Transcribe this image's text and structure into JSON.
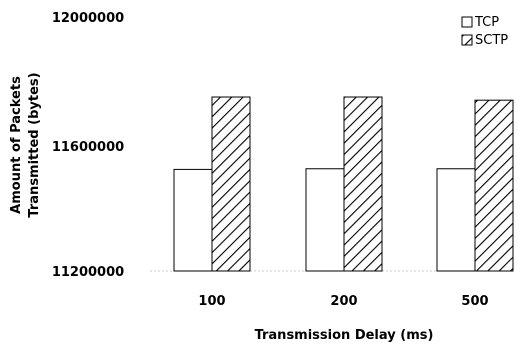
{
  "chart_data": {
    "type": "bar",
    "title": "",
    "xlabel": "Transmission Delay (ms)",
    "ylabel_lines": [
      "Amount of Packets",
      "Transmitted (bytes)"
    ],
    "categories": [
      "100",
      "200",
      "500"
    ],
    "ylim": [
      11200000,
      12000000
    ],
    "yticks": [
      "11200000",
      "11600000",
      "12000000"
    ],
    "ytick_values": [
      11200000,
      11600000,
      12000000
    ],
    "grid": false,
    "legend_position": "top-right",
    "series": [
      {
        "name": "TCP",
        "pattern": "hollow",
        "color": "#000000",
        "values": [
          11520000,
          11522000,
          11522000
        ]
      },
      {
        "name": "SCTP",
        "pattern": "hatched",
        "color": "#000000",
        "values": [
          11748000,
          11748000,
          11738000
        ]
      }
    ]
  }
}
